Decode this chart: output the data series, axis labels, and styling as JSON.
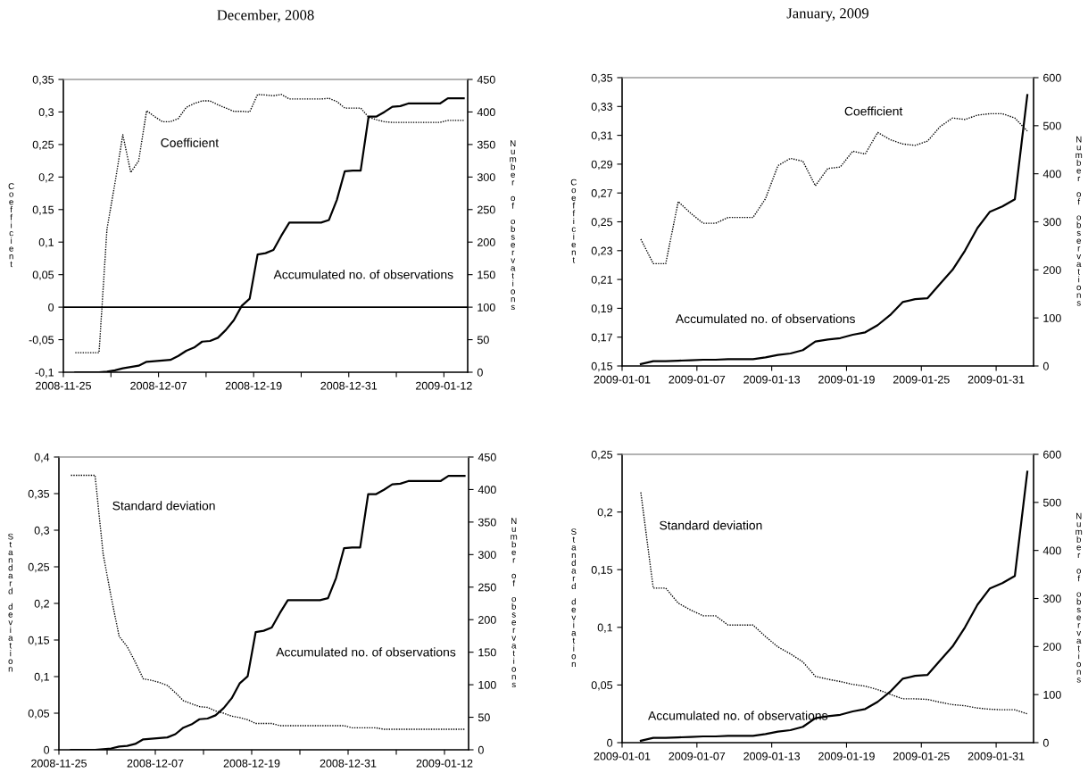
{
  "chart_data": [
    {
      "type": "line",
      "title": "December, 2008",
      "ylabel": "Coefficient",
      "y2label": "Number of observations",
      "x": [
        "2008-11-26T12:00",
        "2008-11-27T12:00",
        "2008-11-28T12:00",
        "2008-11-29T12:00",
        "2008-11-30T12:00",
        "2008-12-01T12:00",
        "2008-12-02T12:00",
        "2008-12-03T12:00",
        "2008-12-04T12:00",
        "2008-12-05T12:00",
        "2008-12-06T12:00",
        "2008-12-07T12:00",
        "2008-12-08T12:00",
        "2008-12-09T12:00",
        "2008-12-10T12:00",
        "2008-12-11T12:00",
        "2008-12-12T12:00",
        "2008-12-13T12:00",
        "2008-12-14T12:00",
        "2008-12-15T12:00",
        "2008-12-16T12:00",
        "2008-12-17T12:00",
        "2008-12-18T12:00",
        "2008-12-19T12:00",
        "2008-12-20T12:00",
        "2008-12-21T12:00",
        "2008-12-22T12:00",
        "2008-12-23T12:00",
        "2008-12-24T12:00",
        "2008-12-25T12:00",
        "2008-12-26T12:00",
        "2008-12-27T12:00",
        "2008-12-28T12:00",
        "2008-12-29T12:00",
        "2008-12-30T12:00",
        "2008-12-31T12:00",
        "2009-01-01T12:00",
        "2009-01-02T12:00",
        "2009-01-03T12:00",
        "2009-01-04T12:00",
        "2009-01-05T12:00",
        "2009-01-06T12:00",
        "2009-01-07T12:00",
        "2009-01-08T12:00",
        "2009-01-09T12:00",
        "2009-01-10T12:00",
        "2009-01-11T12:00",
        "2009-01-12T12:00",
        "2009-01-13T12:00",
        "2009-01-14T12:00"
      ],
      "series": [
        {
          "name": "Coefficient",
          "color": "#000000",
          "line_style": "dotted",
          "values": [
            -0.07,
            -0.07,
            -0.07,
            -0.07,
            0.12,
            0.19,
            0.265,
            0.207,
            0.225,
            0.302,
            0.293,
            0.285,
            0.285,
            0.29,
            0.307,
            0.313,
            0.317,
            0.317,
            0.311,
            0.306,
            0.301,
            0.301,
            0.3,
            0.327,
            0.326,
            0.325,
            0.327,
            0.32,
            0.32,
            0.32,
            0.32,
            0.32,
            0.321,
            0.316,
            0.306,
            0.306,
            0.306,
            0.292,
            0.288,
            0.285,
            0.284,
            0.284,
            0.284,
            0.284,
            0.284,
            0.284,
            0.284,
            0.287,
            0.287,
            0.287
          ]
        },
        {
          "name": "Accumulated no. of observations",
          "color": "#000000",
          "line_style": "solid",
          "axis": "y2",
          "values": [
            0,
            0,
            0,
            0,
            1,
            3,
            6,
            8,
            10,
            16,
            17,
            18,
            19,
            25,
            33,
            38,
            47,
            48,
            53,
            65,
            80,
            102,
            113,
            181,
            183,
            188,
            210,
            230,
            230,
            230,
            230,
            230,
            234,
            265,
            309,
            310,
            310,
            393,
            393,
            400,
            408,
            409,
            413,
            413,
            413,
            413,
            413,
            421,
            421,
            421
          ]
        }
      ],
      "xlim": [
        "2008-11-25",
        "2009-01-15"
      ],
      "xticks": [
        {
          "value": "2008-11-25",
          "label": "2008-11-25"
        },
        {
          "value": "2008-12-01",
          "label": null
        },
        {
          "value": "2008-12-07",
          "label": "2008-12-07"
        },
        {
          "value": "2008-12-13",
          "label": null
        },
        {
          "value": "2008-12-19",
          "label": "2008-12-19"
        },
        {
          "value": "2008-12-25",
          "label": null
        },
        {
          "value": "2008-12-31",
          "label": "2008-12-31"
        },
        {
          "value": "2009-01-06",
          "label": null
        },
        {
          "value": "2009-01-12",
          "label": "2009-01-12"
        }
      ],
      "ylim": [
        -0.1,
        0.35
      ],
      "yticks": [
        {
          "value": -0.1,
          "label": "-0,1"
        },
        {
          "value": -0.05,
          "label": "-0,05"
        },
        {
          "value": 0,
          "label": "0"
        },
        {
          "value": 0.05,
          "label": "0,05"
        },
        {
          "value": 0.1,
          "label": "0,1"
        },
        {
          "value": 0.15,
          "label": "0,15"
        },
        {
          "value": 0.2,
          "label": "0,2"
        },
        {
          "value": 0.25,
          "label": "0,25"
        },
        {
          "value": 0.3,
          "label": "0,3"
        },
        {
          "value": 0.35,
          "label": "0,35"
        }
      ],
      "y2lim": [
        0,
        450
      ],
      "y2ticks": [
        0,
        50,
        100,
        150,
        200,
        250,
        300,
        350,
        400,
        450
      ],
      "ref_lines": [
        {
          "axis": "y",
          "value": 0,
          "color": "#000000"
        }
      ],
      "marker": "none",
      "grid": false,
      "legend": false
    },
    {
      "type": "line",
      "title": "January, 2009",
      "ylabel": "Coefficient",
      "y2label": "Number of observations",
      "x": [
        "2009-01-02T12:00",
        "2009-01-03T12:00",
        "2009-01-04T12:00",
        "2009-01-05T12:00",
        "2009-01-06T12:00",
        "2009-01-07T12:00",
        "2009-01-08T12:00",
        "2009-01-09T12:00",
        "2009-01-10T12:00",
        "2009-01-11T12:00",
        "2009-01-12T12:00",
        "2009-01-13T12:00",
        "2009-01-14T12:00",
        "2009-01-15T12:00",
        "2009-01-16T12:00",
        "2009-01-17T12:00",
        "2009-01-18T12:00",
        "2009-01-19T12:00",
        "2009-01-20T12:00",
        "2009-01-21T12:00",
        "2009-01-22T12:00",
        "2009-01-23T12:00",
        "2009-01-24T12:00",
        "2009-01-25T12:00",
        "2009-01-26T12:00",
        "2009-01-27T12:00",
        "2009-01-28T12:00",
        "2009-01-29T12:00",
        "2009-01-30T12:00",
        "2009-01-31T12:00",
        "2009-02-01T12:00",
        "2009-02-02T12:00"
      ],
      "series": [
        {
          "name": "Coefficient",
          "color": "#000000",
          "line_style": "dotted",
          "values": [
            0.238,
            0.221,
            0.221,
            0.264,
            0.256,
            0.249,
            0.249,
            0.253,
            0.253,
            0.253,
            0.266,
            0.289,
            0.294,
            0.292,
            0.275,
            0.287,
            0.288,
            0.299,
            0.297,
            0.312,
            0.307,
            0.304,
            0.303,
            0.306,
            0.316,
            0.322,
            0.321,
            0.324,
            0.325,
            0.325,
            0.322,
            0.313
          ]
        },
        {
          "name": "Accumulated no. of observations",
          "color": "#000000",
          "line_style": "solid",
          "axis": "y2",
          "values": [
            4,
            10,
            10,
            11,
            12,
            13,
            13,
            14,
            14,
            14,
            18,
            23,
            26,
            33,
            51,
            55,
            58,
            65,
            70,
            85,
            106,
            133,
            139,
            141,
            171,
            200,
            240,
            287,
            321,
            332,
            347,
            564
          ]
        }
      ],
      "xlim": [
        "2009-01-01",
        "2009-02-03"
      ],
      "xticks": [
        "2009-01-01",
        "2009-01-07",
        "2009-01-13",
        "2009-01-19",
        "2009-01-25",
        "2009-01-31"
      ],
      "ylim": [
        0.15,
        0.35
      ],
      "yticks": [
        {
          "value": 0.15,
          "label": "0,15"
        },
        {
          "value": 0.17,
          "label": "0,17"
        },
        {
          "value": 0.19,
          "label": "0,19"
        },
        {
          "value": 0.21,
          "label": "0,21"
        },
        {
          "value": 0.23,
          "label": "0,23"
        },
        {
          "value": 0.25,
          "label": "0,25"
        },
        {
          "value": 0.27,
          "label": "0,27"
        },
        {
          "value": 0.29,
          "label": "0,29"
        },
        {
          "value": 0.31,
          "label": "0,31"
        },
        {
          "value": 0.33,
          "label": "0,33"
        },
        {
          "value": 0.35,
          "label": "0,35"
        }
      ],
      "y2lim": [
        0,
        600
      ],
      "y2ticks": [
        0,
        100,
        200,
        300,
        400,
        500,
        600
      ],
      "marker": "none",
      "grid": false,
      "legend": false
    },
    {
      "type": "line",
      "ylabel": "Standard deviation",
      "y2label": "Number of observations",
      "x": [
        "2008-11-26T12:00",
        "2008-11-27T12:00",
        "2008-11-28T12:00",
        "2008-11-29T12:00",
        "2008-11-30T12:00",
        "2008-12-01T12:00",
        "2008-12-02T12:00",
        "2008-12-03T12:00",
        "2008-12-04T12:00",
        "2008-12-05T12:00",
        "2008-12-06T12:00",
        "2008-12-07T12:00",
        "2008-12-08T12:00",
        "2008-12-09T12:00",
        "2008-12-10T12:00",
        "2008-12-11T12:00",
        "2008-12-12T12:00",
        "2008-12-13T12:00",
        "2008-12-14T12:00",
        "2008-12-15T12:00",
        "2008-12-16T12:00",
        "2008-12-17T12:00",
        "2008-12-18T12:00",
        "2008-12-19T12:00",
        "2008-12-20T12:00",
        "2008-12-21T12:00",
        "2008-12-22T12:00",
        "2008-12-23T12:00",
        "2008-12-24T12:00",
        "2008-12-25T12:00",
        "2008-12-26T12:00",
        "2008-12-27T12:00",
        "2008-12-28T12:00",
        "2008-12-29T12:00",
        "2008-12-30T12:00",
        "2008-12-31T12:00",
        "2009-01-01T12:00",
        "2009-01-02T12:00",
        "2009-01-03T12:00",
        "2009-01-04T12:00",
        "2009-01-05T12:00",
        "2009-01-06T12:00",
        "2009-01-07T12:00",
        "2009-01-08T12:00",
        "2009-01-09T12:00",
        "2009-01-10T12:00",
        "2009-01-11T12:00",
        "2009-01-12T12:00",
        "2009-01-13T12:00",
        "2009-01-14T12:00"
      ],
      "series": [
        {
          "name": "Standard deviation",
          "color": "#000000",
          "line_style": "dotted",
          "values": [
            0.375,
            0.375,
            0.375,
            0.375,
            0.268,
            0.209,
            0.155,
            0.141,
            0.12,
            0.097,
            0.095,
            0.092,
            0.088,
            0.078,
            0.067,
            0.063,
            0.059,
            0.058,
            0.053,
            0.05,
            0.046,
            0.044,
            0.041,
            0.036,
            0.036,
            0.036,
            0.033,
            0.033,
            0.033,
            0.033,
            0.033,
            0.033,
            0.033,
            0.033,
            0.033,
            0.03,
            0.03,
            0.03,
            0.03,
            0.028,
            0.028,
            0.028,
            0.028,
            0.028,
            0.028,
            0.028,
            0.028,
            0.028,
            0.028,
            0.028
          ]
        },
        {
          "name": "Accumulated no. of observations",
          "color": "#000000",
          "line_style": "solid",
          "axis": "y2",
          "values": [
            0,
            0,
            0,
            0,
            1,
            2,
            5,
            6,
            9,
            16,
            17,
            18,
            19,
            24,
            34,
            39,
            47,
            48,
            53,
            64,
            79,
            102,
            113,
            181,
            183,
            188,
            210,
            230,
            230,
            230,
            230,
            230,
            233,
            264,
            310,
            311,
            311,
            393,
            393,
            400,
            408,
            409,
            413,
            413,
            413,
            413,
            413,
            421,
            421,
            421
          ]
        }
      ],
      "xlim": [
        "2008-11-25",
        "2009-01-15"
      ],
      "xticks": [
        {
          "value": "2008-11-25",
          "label": "2008-11-25"
        },
        {
          "value": "2008-12-01",
          "label": null
        },
        {
          "value": "2008-12-07",
          "label": "2008-12-07"
        },
        {
          "value": "2008-12-13",
          "label": null
        },
        {
          "value": "2008-12-19",
          "label": "2008-12-19"
        },
        {
          "value": "2008-12-25",
          "label": null
        },
        {
          "value": "2008-12-31",
          "label": "2008-12-31"
        },
        {
          "value": "2009-01-06",
          "label": null
        },
        {
          "value": "2009-01-12",
          "label": "2009-01-12"
        }
      ],
      "ylim": [
        0,
        0.4
      ],
      "yticks": [
        {
          "value": 0,
          "label": "0"
        },
        {
          "value": 0.05,
          "label": "0,05"
        },
        {
          "value": 0.1,
          "label": "0,1"
        },
        {
          "value": 0.15,
          "label": "0,15"
        },
        {
          "value": 0.2,
          "label": "0,2"
        },
        {
          "value": 0.25,
          "label": "0,25"
        },
        {
          "value": 0.3,
          "label": "0,3"
        },
        {
          "value": 0.35,
          "label": "0,35"
        },
        {
          "value": 0.4,
          "label": "0,4"
        }
      ],
      "y2lim": [
        0,
        450
      ],
      "y2ticks": [
        0,
        50,
        100,
        150,
        200,
        250,
        300,
        350,
        400,
        450
      ],
      "marker": "none",
      "grid": false,
      "legend": false
    },
    {
      "type": "line",
      "ylabel": "Standard deviation",
      "y2label": "Number of observations",
      "x": [
        "2009-01-02T12:00",
        "2009-01-03T12:00",
        "2009-01-04T12:00",
        "2009-01-05T12:00",
        "2009-01-06T12:00",
        "2009-01-07T12:00",
        "2009-01-08T12:00",
        "2009-01-09T12:00",
        "2009-01-10T12:00",
        "2009-01-11T12:00",
        "2009-01-12T12:00",
        "2009-01-13T12:00",
        "2009-01-14T12:00",
        "2009-01-15T12:00",
        "2009-01-16T12:00",
        "2009-01-17T12:00",
        "2009-01-18T12:00",
        "2009-01-19T12:00",
        "2009-01-20T12:00",
        "2009-01-21T12:00",
        "2009-01-22T12:00",
        "2009-01-23T12:00",
        "2009-01-24T12:00",
        "2009-01-25T12:00",
        "2009-01-26T12:00",
        "2009-01-27T12:00",
        "2009-01-28T12:00",
        "2009-01-29T12:00",
        "2009-01-30T12:00",
        "2009-01-31T12:00",
        "2009-02-01T12:00",
        "2009-02-02T12:00"
      ],
      "series": [
        {
          "name": "Standard deviation",
          "color": "#000000",
          "line_style": "dotted",
          "values": [
            0.217,
            0.134,
            0.134,
            0.121,
            0.115,
            0.11,
            0.11,
            0.102,
            0.102,
            0.102,
            0.092,
            0.083,
            0.077,
            0.07,
            0.0575,
            0.055,
            0.053,
            0.0505,
            0.049,
            0.046,
            0.042,
            0.038,
            0.038,
            0.0375,
            0.035,
            0.033,
            0.032,
            0.03,
            0.029,
            0.0285,
            0.0285,
            0.025
          ]
        },
        {
          "name": "Accumulated no. of observations",
          "color": "#000000",
          "line_style": "solid",
          "axis": "y2",
          "values": [
            4,
            10,
            10,
            11,
            12,
            13,
            13,
            14,
            14,
            14,
            18,
            23,
            26,
            33,
            51,
            55,
            58,
            65,
            70,
            85,
            106,
            133,
            139,
            141,
            171,
            200,
            240,
            287,
            321,
            332,
            347,
            564
          ]
        }
      ],
      "xlim": [
        "2009-01-01",
        "2009-02-03"
      ],
      "xticks": [
        "2009-01-01",
        "2009-01-07",
        "2009-01-13",
        "2009-01-19",
        "2009-01-25",
        "2009-01-31"
      ],
      "ylim": [
        0,
        0.25
      ],
      "yticks": [
        {
          "value": 0,
          "label": "0"
        },
        {
          "value": 0.05,
          "label": "0,05"
        },
        {
          "value": 0.1,
          "label": "0,1"
        },
        {
          "value": 0.15,
          "label": "0,15"
        },
        {
          "value": 0.2,
          "label": "0,2"
        },
        {
          "value": 0.25,
          "label": "0,25"
        }
      ],
      "y2lim": [
        0,
        600
      ],
      "y2ticks": [
        0,
        100,
        200,
        300,
        400,
        500,
        600
      ],
      "marker": "none",
      "grid": false,
      "legend": false
    }
  ]
}
